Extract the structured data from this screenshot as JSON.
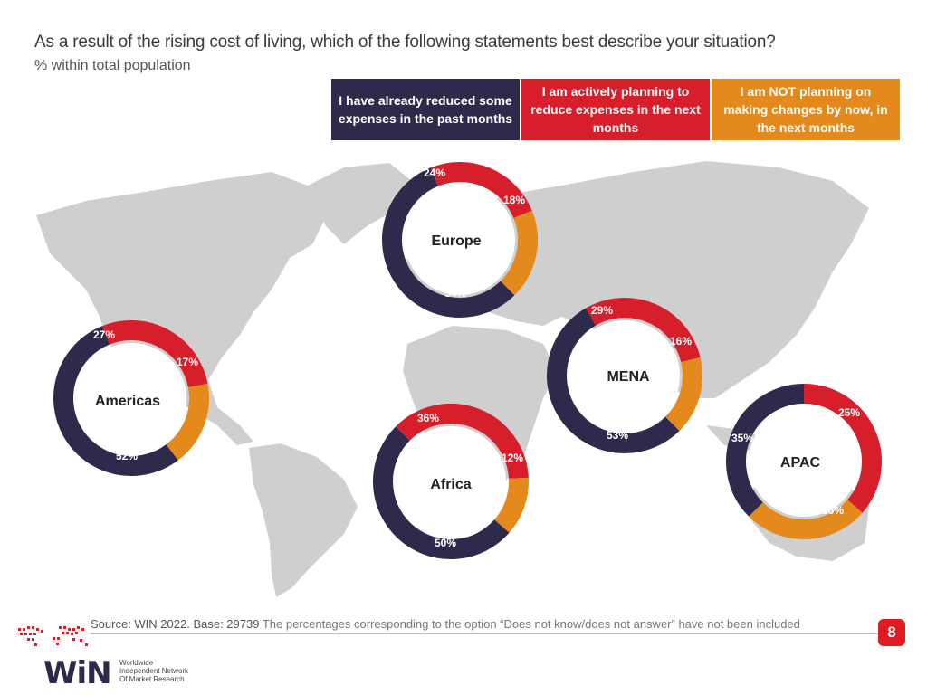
{
  "header": {
    "title": "As a result of the rising cost of living, which of the following statements best describe your situation?",
    "subtitle": "% within total population"
  },
  "legend": [
    {
      "label": "I have already reduced some expenses in the past months",
      "color": "#2e2a4c"
    },
    {
      "label": "I am actively planning to reduce expenses in the next months",
      "color": "#d71f2b"
    },
    {
      "label": "I am NOT planning on making changes by now, in the next months",
      "color": "#e48a1d"
    }
  ],
  "chart_data": [
    {
      "type": "pie",
      "title": "Europe",
      "categories": [
        "I have already reduced some expenses in the past months",
        "I am actively planning to reduce expenses in the next months",
        "I am NOT planning on making changes by now, in the next months"
      ],
      "values": [
        54,
        24,
        18
      ],
      "labels": [
        "54%",
        "24%",
        "18%"
      ]
    },
    {
      "type": "pie",
      "title": "Americas",
      "categories": [
        "I have already reduced some expenses in the past months",
        "I am actively planning to reduce expenses in the next months",
        "I am NOT planning on making changes by now, in the next months"
      ],
      "values": [
        52,
        27,
        17
      ],
      "labels": [
        "52%",
        "27%",
        "17%"
      ]
    },
    {
      "type": "pie",
      "title": "MENA",
      "categories": [
        "I have already reduced some expenses in the past months",
        "I am actively planning to reduce expenses in the next months",
        "I am NOT planning on making changes by now, in the next months"
      ],
      "values": [
        53,
        29,
        16
      ],
      "labels": [
        "53%",
        "29%",
        "16%"
      ]
    },
    {
      "type": "pie",
      "title": "Africa",
      "categories": [
        "I have already reduced some expenses in the past months",
        "I am actively planning to reduce expenses in the next months",
        "I am NOT planning on making changes by now, in the next months"
      ],
      "values": [
        50,
        36,
        12
      ],
      "labels": [
        "50%",
        "36%",
        "12%"
      ]
    },
    {
      "type": "pie",
      "title": "APAC",
      "categories": [
        "I have already reduced some expenses in the past months",
        "I am actively planning to reduce expenses in the next months",
        "I am NOT planning on making changes by now, in the next months"
      ],
      "values": [
        36,
        35,
        25
      ],
      "labels": [
        "36%",
        "35%",
        "25%"
      ]
    }
  ],
  "footer": {
    "source": "Source: WIN 2022. Base: 29739",
    "note": " The percentages corresponding to the option “Does not know/does not answer” have not been included",
    "page_number": "8",
    "logo_text": "WiN",
    "logo_subtitle": [
      "Worldwide",
      "Independent Network",
      "Of Market Research"
    ]
  }
}
